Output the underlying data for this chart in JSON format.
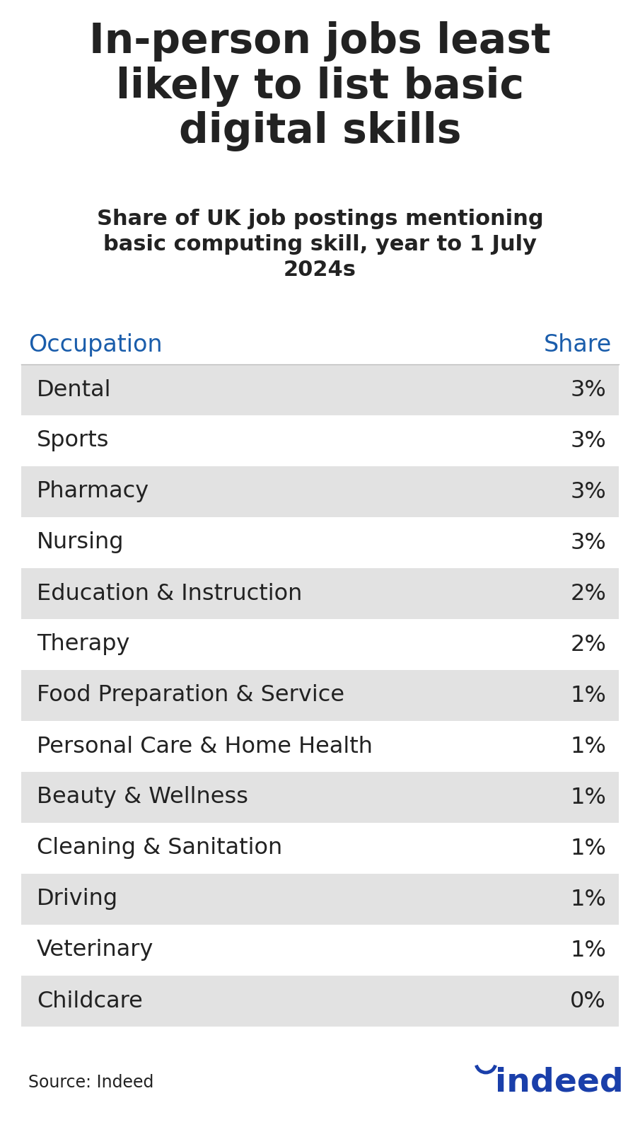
{
  "title": "In-person jobs least\nlikely to list basic\ndigital skills",
  "subtitle": "Share of UK job postings mentioning\nbasic computing skill, year to 1 July\n2024s",
  "col_header_occupation": "Occupation",
  "col_header_share": "Share",
  "rows": [
    {
      "occupation": "Dental",
      "share": "3%",
      "shaded": true
    },
    {
      "occupation": "Sports",
      "share": "3%",
      "shaded": false
    },
    {
      "occupation": "Pharmacy",
      "share": "3%",
      "shaded": true
    },
    {
      "occupation": "Nursing",
      "share": "3%",
      "shaded": false
    },
    {
      "occupation": "Education & Instruction",
      "share": "2%",
      "shaded": true
    },
    {
      "occupation": "Therapy",
      "share": "2%",
      "shaded": false
    },
    {
      "occupation": "Food Preparation & Service",
      "share": "1%",
      "shaded": true
    },
    {
      "occupation": "Personal Care & Home Health",
      "share": "1%",
      "shaded": false
    },
    {
      "occupation": "Beauty & Wellness",
      "share": "1%",
      "shaded": true
    },
    {
      "occupation": "Cleaning & Sanitation",
      "share": "1%",
      "shaded": false
    },
    {
      "occupation": "Driving",
      "share": "1%",
      "shaded": true
    },
    {
      "occupation": "Veterinary",
      "share": "1%",
      "shaded": false
    },
    {
      "occupation": "Childcare",
      "share": "0%",
      "shaded": true
    }
  ],
  "row_shaded_color": "#e2e2e2",
  "row_white_color": "#ffffff",
  "header_color": "#1a5dab",
  "text_color": "#222222",
  "source_text": "Source: Indeed",
  "background_color": "#ffffff",
  "title_fontsize": 42,
  "subtitle_fontsize": 22,
  "header_fontsize": 24,
  "row_fontsize": 23,
  "source_fontsize": 17,
  "indeed_fontsize": 34
}
